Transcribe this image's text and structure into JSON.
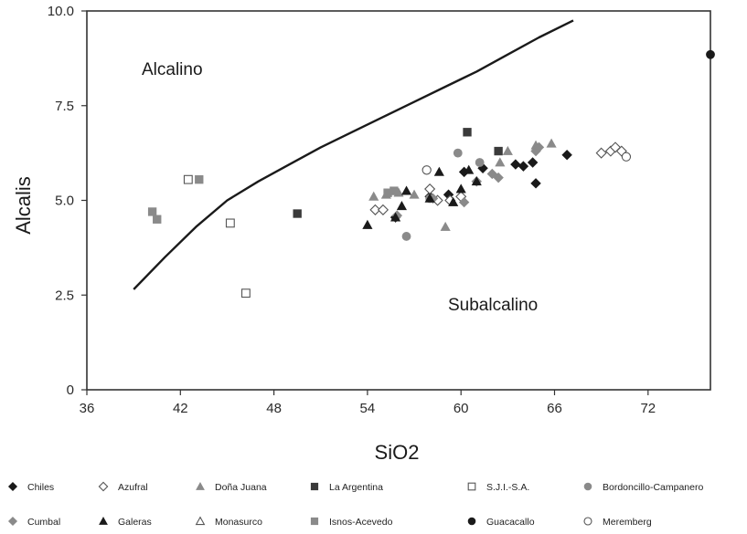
{
  "chart_data": {
    "type": "scatter",
    "title": "",
    "xlabel": "SiO2",
    "ylabel": "Alcalis",
    "xlim": [
      36,
      76
    ],
    "ylim": [
      0,
      10
    ],
    "x_ticks": [
      "36",
      "42",
      "48",
      "54",
      "60",
      "66",
      "72"
    ],
    "y_ticks": [
      "0",
      "2.5",
      "5.0",
      "7.5",
      "10.0"
    ],
    "grid": false,
    "legend_position": "bottom",
    "annotations": [
      "Alcalino",
      "Subalcalino"
    ],
    "boundary_line": {
      "x": [
        39.0,
        41.0,
        43.0,
        45.0,
        47.0,
        49.0,
        51.0,
        53.0,
        55.0,
        57.0,
        59.0,
        61.0,
        63.0,
        65.0,
        67.2
      ],
      "y": [
        2.65,
        3.5,
        4.3,
        5.0,
        5.5,
        5.95,
        6.4,
        6.8,
        7.2,
        7.6,
        8.0,
        8.4,
        8.85,
        9.3,
        9.75
      ]
    },
    "series": [
      {
        "name": "Chiles",
        "marker": "diamond",
        "fill": "#1a1a1a",
        "x": [
          55.8,
          58.0,
          59.2,
          60.2,
          61.4,
          63.5,
          64.0,
          64.6,
          64.8,
          66.8
        ],
        "y": [
          4.55,
          5.1,
          5.15,
          5.75,
          5.85,
          5.95,
          5.9,
          6.0,
          5.45,
          6.2
        ]
      },
      {
        "name": "Azufral",
        "marker": "diamond-open",
        "fill": "none",
        "x": [
          54.5,
          55.0,
          58.0,
          58.5,
          59.3,
          60.0,
          69.0,
          69.6,
          69.9,
          70.3
        ],
        "y": [
          4.75,
          4.75,
          5.3,
          5.0,
          5.0,
          5.1,
          6.25,
          6.3,
          6.4,
          6.3
        ]
      },
      {
        "name": "Doña Juana",
        "marker": "triangle",
        "fill": "#8a8a8a",
        "x": [
          54.4,
          55.2,
          56.0,
          57.0,
          59.0,
          62.5,
          63.0,
          64.8,
          65.8
        ],
        "y": [
          5.1,
          5.15,
          5.2,
          5.15,
          4.3,
          6.0,
          6.3,
          6.45,
          6.5
        ]
      },
      {
        "name": "La Argentina",
        "marker": "square",
        "fill": "#3a3a3a",
        "x": [
          49.5,
          60.4,
          62.4
        ],
        "y": [
          4.65,
          6.8,
          6.3
        ]
      },
      {
        "name": "S.J.I.-S.A.",
        "marker": "square-open",
        "fill": "none",
        "x": [
          42.5,
          45.2,
          46.2
        ],
        "y": [
          5.55,
          4.4,
          2.55
        ]
      },
      {
        "name": "Bordoncillo-Campanero",
        "marker": "circle",
        "fill": "#8a8a8a",
        "x": [
          56.5,
          58.0,
          59.8,
          61.2
        ],
        "y": [
          4.05,
          5.05,
          6.25,
          6.0
        ]
      },
      {
        "name": "Cumbal",
        "marker": "diamond",
        "fill": "#8a8a8a",
        "x": [
          55.9,
          58.2,
          60.2,
          61.0,
          62.0,
          62.4,
          64.8,
          65.0
        ],
        "y": [
          4.6,
          5.05,
          4.95,
          5.5,
          5.7,
          5.6,
          6.3,
          6.4
        ]
      },
      {
        "name": "Galeras",
        "marker": "triangle",
        "fill": "#1a1a1a",
        "x": [
          54.0,
          55.8,
          56.2,
          56.5,
          58.0,
          58.6,
          59.5,
          60.0,
          60.5,
          61.0
        ],
        "y": [
          4.35,
          4.55,
          4.85,
          5.25,
          5.05,
          5.75,
          4.95,
          5.3,
          5.8,
          5.5
        ]
      },
      {
        "name": "Monasurco",
        "marker": "triangle-open",
        "fill": "none",
        "x": [],
        "y": []
      },
      {
        "name": "Isnos-Acevedo",
        "marker": "square",
        "fill": "#8a8a8a",
        "x": [
          40.2,
          40.5,
          43.2,
          55.3,
          55.7
        ],
        "y": [
          4.7,
          4.5,
          5.55,
          5.2,
          5.25
        ]
      },
      {
        "name": "Guacacallo",
        "marker": "circle",
        "fill": "#1a1a1a",
        "x": [
          76.0
        ],
        "y": [
          8.85
        ]
      },
      {
        "name": "Meremberg",
        "marker": "circle-open",
        "fill": "none",
        "x": [
          57.8,
          70.6
        ],
        "y": [
          5.8,
          6.15
        ]
      }
    ]
  }
}
